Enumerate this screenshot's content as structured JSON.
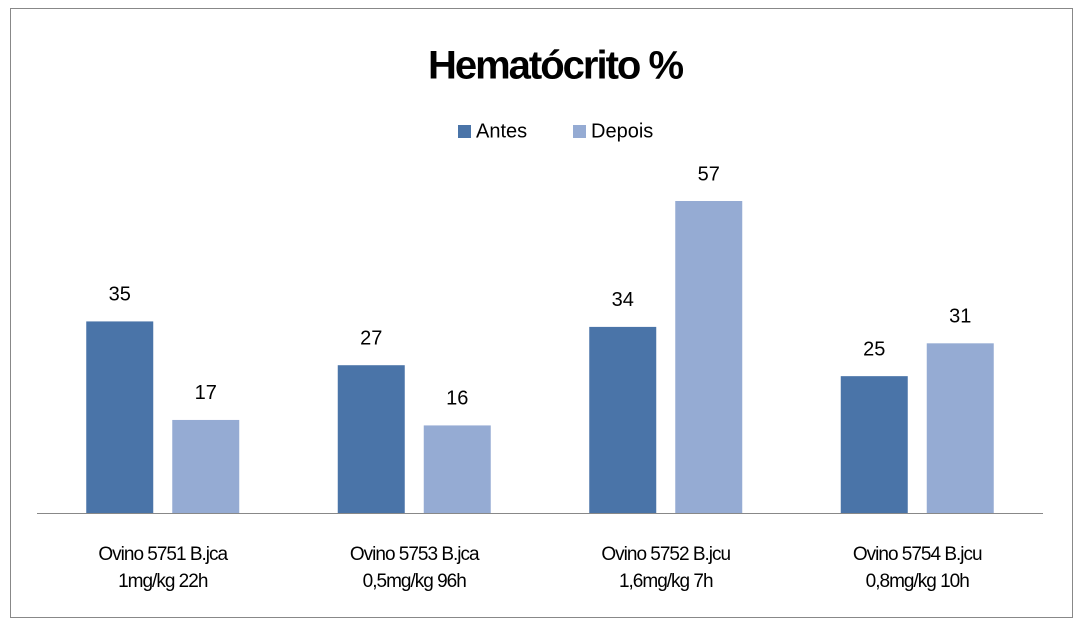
{
  "chart_data": {
    "type": "bar",
    "title": "Hematócrito %",
    "categories": [
      [
        "Ovino 5751 B.jca",
        "1mg/kg   22h"
      ],
      [
        "Ovino 5753 B.jca",
        "0,5mg/kg   96h"
      ],
      [
        "Ovino 5752 B.jcu",
        "1,6mg/kg   7h"
      ],
      [
        "Ovino 5754 B.jcu",
        "0,8mg/kg   10h"
      ]
    ],
    "series": [
      {
        "name": "Antes",
        "color": "#4a74a8",
        "values": [
          35,
          27,
          34,
          25
        ]
      },
      {
        "name": "Depois",
        "color": "#95abd3",
        "values": [
          17,
          16,
          57,
          31
        ]
      }
    ],
    "legend": "top"
  }
}
